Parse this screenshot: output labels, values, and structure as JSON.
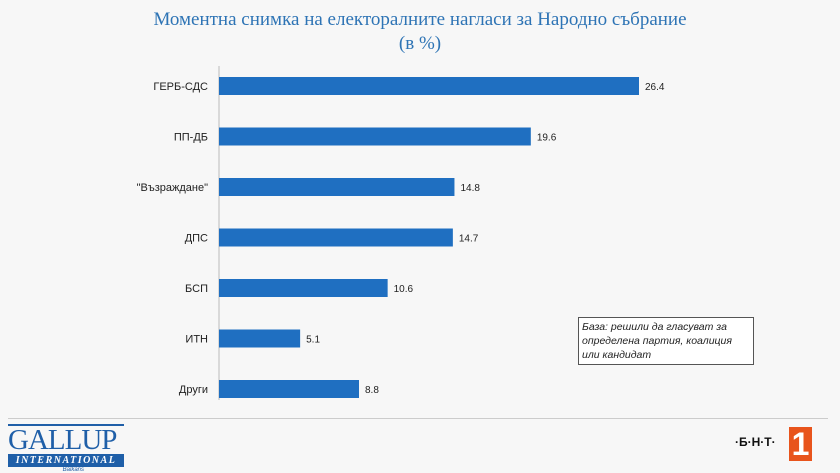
{
  "chart_data": {
    "type": "bar",
    "orientation": "horizontal",
    "title": "Моментна снимка на електоралните нагласи за Народно събрание",
    "subtitle": "(в %)",
    "categories": [
      "ГЕРБ-СДС",
      "ПП-ДБ",
      "\"Възраждане\"",
      "ДПС",
      "БСП",
      "ИТН",
      "Други"
    ],
    "values": [
      26.4,
      19.6,
      14.8,
      14.7,
      10.6,
      5.1,
      8.8
    ],
    "xlim": [
      0,
      27
    ],
    "grid": false,
    "bar_color": "#1f6fc1",
    "annotation": "База: решили да гласуват за определена партия, коалиция или кандидат"
  },
  "footer": {
    "logo_left": "GALLUP INTERNATIONAL Balkans",
    "logo_right": "БНТ 1",
    "logo_right_color": "#e8541c"
  }
}
